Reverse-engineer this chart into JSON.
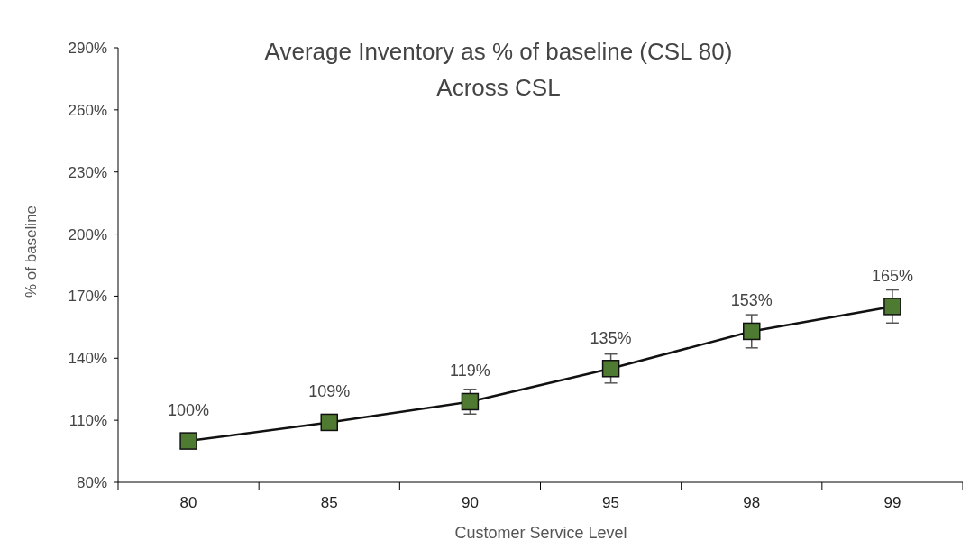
{
  "chart_data": {
    "type": "line",
    "title": "Average Inventory as % of baseline (CSL 80)",
    "subtitle": "Across CSL",
    "xlabel": "Customer Service  Level",
    "ylabel": "% of baseline",
    "categories": [
      "80",
      "85",
      "90",
      "95",
      "98",
      "99"
    ],
    "series": [
      {
        "color": "#4f7a32",
        "values": [
          100,
          109,
          119,
          135,
          153,
          165
        ],
        "errors": [
          2,
          3,
          6,
          7,
          8,
          8
        ],
        "value_labels": [
          "100%",
          "109%",
          "119%",
          "135%",
          "153%",
          "165%"
        ]
      }
    ],
    "ylim": [
      80,
      290
    ],
    "yticks": [
      {
        "value": 80,
        "label": "80%"
      },
      {
        "value": 110,
        "label": "110%"
      },
      {
        "value": 140,
        "label": "140%"
      },
      {
        "value": 170,
        "label": "170%"
      },
      {
        "value": 200,
        "label": "200%"
      },
      {
        "value": 230,
        "label": "230%"
      },
      {
        "value": 260,
        "label": "260%"
      },
      {
        "value": 290,
        "label": "290%"
      }
    ],
    "grid": false,
    "marker": "square",
    "line_style": "solid"
  }
}
